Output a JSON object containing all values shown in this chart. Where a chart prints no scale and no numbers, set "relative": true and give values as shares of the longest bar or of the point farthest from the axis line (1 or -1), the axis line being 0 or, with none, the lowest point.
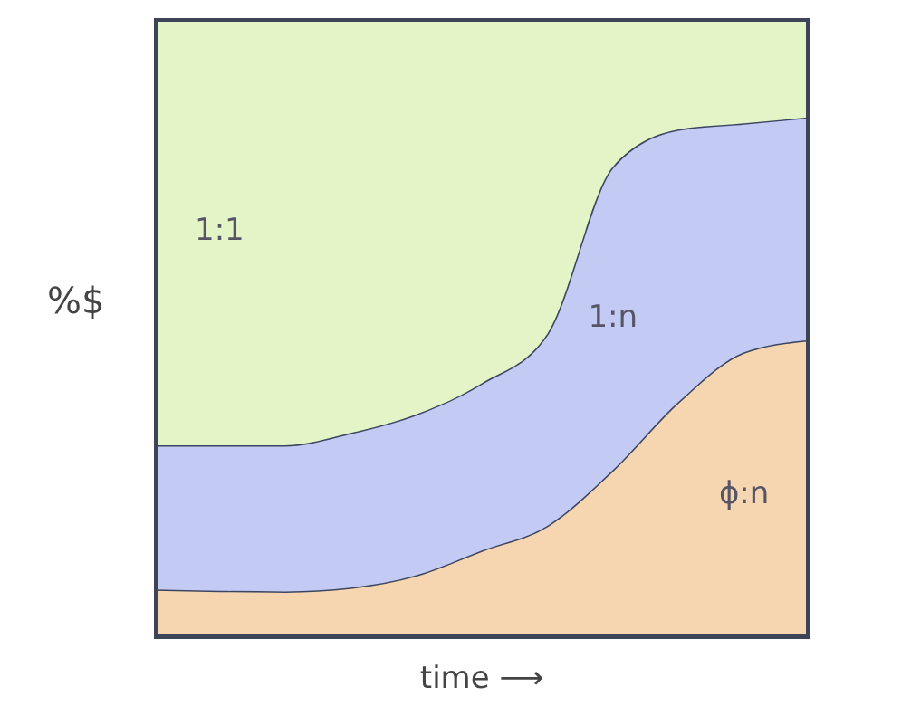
{
  "chart_data": {
    "type": "area",
    "stacked": true,
    "relative": true,
    "xlabel": "time ⟶",
    "ylabel": "%$",
    "categories": [
      null,
      null,
      null,
      null,
      null,
      null,
      null,
      null,
      null,
      null,
      null
    ],
    "series": [
      {
        "name": "ϕ:n",
        "color": "#f5d6b0",
        "values": [
          0.077,
          0.075,
          0.074,
          0.08,
          0.1,
          0.14,
          0.18,
          0.27,
          0.38,
          0.46,
          0.48
        ]
      },
      {
        "name": "1:n",
        "color": "#c3cbf5",
        "values": [
          0.233,
          0.235,
          0.236,
          0.25,
          0.26,
          0.27,
          0.31,
          0.49,
          0.44,
          0.37,
          0.36
        ]
      },
      {
        "name": "1:1",
        "color": "#e3f5c6",
        "values": [
          0.69,
          0.69,
          0.69,
          0.67,
          0.64,
          0.59,
          0.51,
          0.24,
          0.18,
          0.17,
          0.16
        ]
      }
    ]
  }
}
